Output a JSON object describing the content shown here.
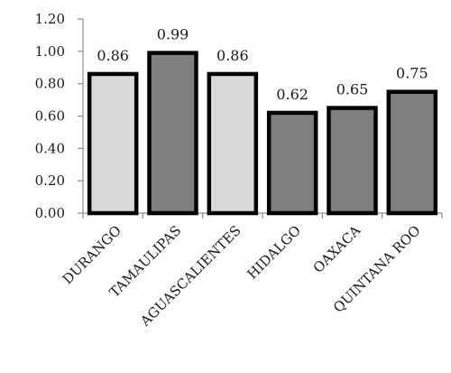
{
  "chart_data": {
    "type": "bar",
    "categories": [
      "DURANGO",
      "TAMAULIPAS",
      "AGUASCALIENTES",
      "HIDALGO",
      "OAXACA",
      "QUINTANA ROO"
    ],
    "values": [
      0.86,
      0.99,
      0.86,
      0.62,
      0.65,
      0.75
    ],
    "value_labels": [
      "0.86",
      "0.99",
      "0.86",
      "0.62",
      "0.65",
      "0.75"
    ],
    "bar_colors": [
      "#d9d9d9",
      "#7f7f7f",
      "#d9d9d9",
      "#7f7f7f",
      "#7f7f7f",
      "#7f7f7f"
    ],
    "bar_outline_color": "#000000",
    "title": "",
    "xlabel": "",
    "ylabel": "",
    "ylim": [
      0,
      1.2
    ],
    "yticks": [
      0,
      0.2,
      0.4,
      0.6,
      0.8,
      1.0,
      1.2
    ],
    "ytick_labels": [
      "0.00",
      "0.20",
      "0.40",
      "0.60",
      "0.80",
      "1.00",
      "1.20"
    ],
    "grid": false,
    "legend": "none"
  }
}
